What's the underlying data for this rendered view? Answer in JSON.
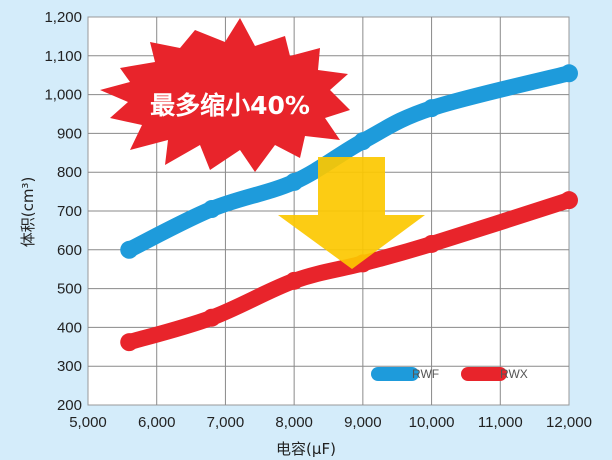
{
  "chart_data": {
    "type": "line",
    "xlabel": "电容(μF)",
    "ylabel": "体积(cm³)",
    "xlim": [
      5000,
      12000
    ],
    "ylim": [
      200,
      1200
    ],
    "x_ticks": [
      5000,
      6000,
      7000,
      8000,
      9000,
      10000,
      11000,
      12000
    ],
    "y_ticks": [
      200,
      300,
      400,
      500,
      600,
      700,
      800,
      900,
      1000,
      1100,
      1200
    ],
    "x_tick_labels": [
      "5,000",
      "6,000",
      "7,000",
      "8,000",
      "9,000",
      "10,000",
      "11,000",
      "12,000"
    ],
    "y_tick_labels": [
      "200",
      "300",
      "400",
      "500",
      "600",
      "700",
      "800",
      "900",
      "1,000",
      "1,100",
      "1,200"
    ],
    "grid": true,
    "legend_position": "bottom-right",
    "series": [
      {
        "name": "RWF",
        "color": "#1e9bdb",
        "points": [
          [
            5600,
            600
          ],
          [
            6800,
            705
          ],
          [
            8000,
            775
          ],
          [
            9000,
            880
          ],
          [
            10000,
            965
          ],
          [
            12000,
            1055
          ]
        ]
      },
      {
        "name": "RWX",
        "color": "#e8242b",
        "points": [
          [
            5600,
            362
          ],
          [
            6800,
            425
          ],
          [
            8000,
            520
          ],
          [
            9000,
            565
          ],
          [
            10000,
            615
          ],
          [
            12000,
            728
          ]
        ]
      }
    ],
    "annotations": {
      "callout_text": "最多缩小40%",
      "callout_color": "#e8242b",
      "arrow_color": "#fcc800"
    }
  }
}
